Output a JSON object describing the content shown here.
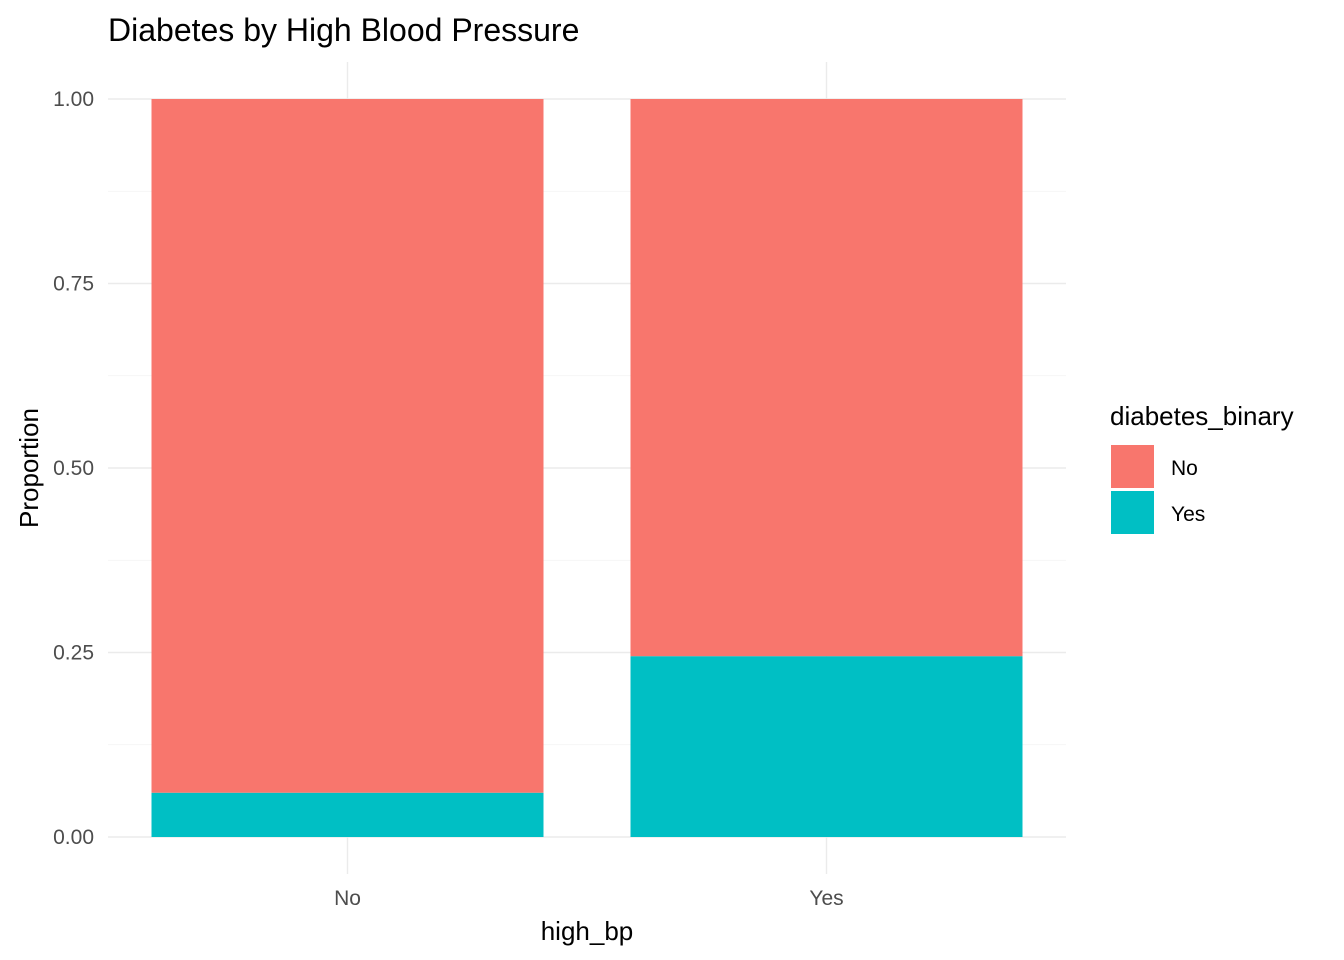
{
  "chart_data": {
    "type": "bar",
    "stacked": true,
    "title": "Diabetes by High Blood Pressure",
    "xlabel": "high_bp",
    "ylabel": "Proportion",
    "categories": [
      "No",
      "Yes"
    ],
    "ylim": [
      0,
      1
    ],
    "yticks": [
      0,
      0.25,
      0.5,
      0.75,
      1
    ],
    "ytick_labels": [
      "0.00",
      "0.25",
      "0.50",
      "0.75",
      "1.00"
    ],
    "grid": true,
    "legend": {
      "title": "diabetes_binary",
      "placement": "right"
    },
    "series": [
      {
        "name": "Yes",
        "color": "#00BFC4",
        "values": [
          0.06,
          0.245
        ]
      },
      {
        "name": "No",
        "color": "#F8766D",
        "values": [
          0.94,
          0.755
        ]
      }
    ],
    "legend_entries": [
      {
        "label": "No",
        "color": "#F8766D"
      },
      {
        "label": "Yes",
        "color": "#00BFC4"
      }
    ]
  }
}
